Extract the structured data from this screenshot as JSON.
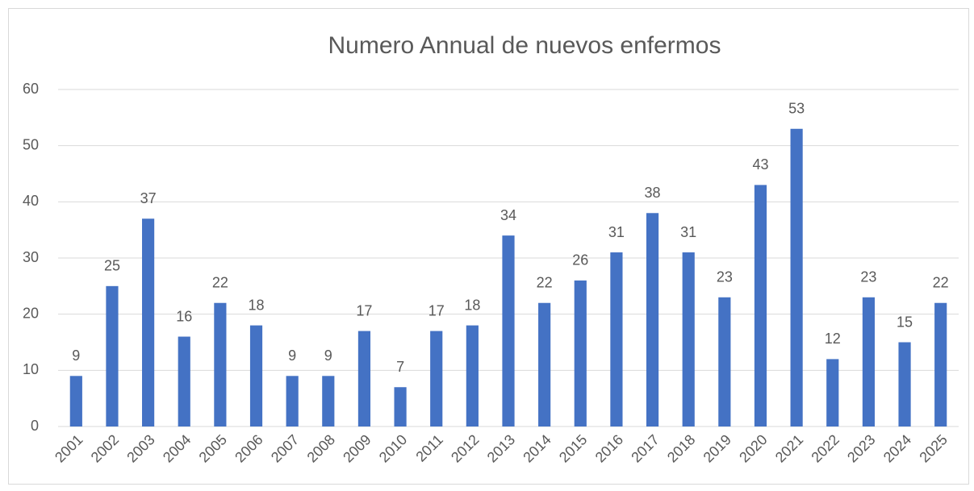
{
  "chart_data": {
    "type": "bar",
    "title": "Numero Annual de nuevos enfermos",
    "categories": [
      "2001",
      "2002",
      "2003",
      "2004",
      "2005",
      "2006",
      "2007",
      "2008",
      "2009",
      "2010",
      "2011",
      "2012",
      "2013",
      "2014",
      "2015",
      "2016",
      "2017",
      "2018",
      "2019",
      "2020",
      "2021",
      "2022",
      "2023",
      "2024",
      "2025"
    ],
    "values": [
      9,
      25,
      37,
      16,
      22,
      18,
      9,
      9,
      17,
      7,
      17,
      18,
      34,
      22,
      26,
      31,
      38,
      31,
      23,
      43,
      53,
      12,
      23,
      15,
      22
    ],
    "color": "#4472c4",
    "ylim": [
      0,
      60
    ],
    "yticks": [
      0,
      10,
      20,
      30,
      40,
      50,
      60
    ],
    "grid": true,
    "data_labels": true
  }
}
